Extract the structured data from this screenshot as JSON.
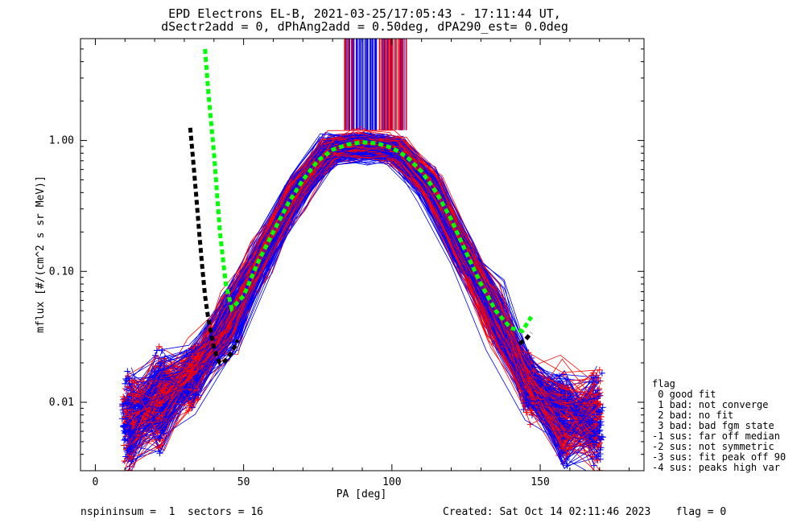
{
  "header": {
    "title_line1": "EPD Electrons EL-B, 2021-03-25/17:05:43 - 17:11:44 UT,",
    "title_line2": "dSectr2add = 0, dPhAng2add = 0.50deg, dPA290_est=   0.0deg"
  },
  "footer": {
    "left": "nspininsum =  1  sectors = 16",
    "right": "Created: Sat Oct 14 02:11:46 2023    flag = 0"
  },
  "legend": {
    "title": "flag",
    "items": [
      " 0 good fit",
      " 1 bad: not converge",
      " 2 bad: no fit",
      " 3 bad: bad fgm state",
      "-1 sus: far off median",
      "-2 sus: not symmetric",
      "-3 sus: fit peak off 90",
      "-4 sus: peaks high var"
    ]
  },
  "colors": {
    "series_a": "#ff0000",
    "series_b": "#0000ff",
    "fit_green": "#00ff00",
    "fit_black": "#000000",
    "axis": "#000000"
  },
  "chart_data": {
    "type": "line",
    "scale_y": "log",
    "xlabel": "PA [deg]",
    "ylabel": "mflux [#/(cm^2 s sr MeV)]",
    "xlim": [
      -5,
      185
    ],
    "ylim": [
      0.003,
      6.0
    ],
    "x_ticks": [
      0,
      50,
      100,
      150
    ],
    "x_tick_labels": [
      "0",
      "50",
      "100",
      "150"
    ],
    "y_ticks": [
      0.01,
      0.1,
      1.0
    ],
    "y_tick_labels": [
      "0.01",
      "0.10",
      "1.00"
    ],
    "pa_grid": [
      11,
      22,
      33,
      45,
      56,
      68,
      79,
      90,
      101,
      113,
      124,
      135,
      146,
      158,
      169
    ],
    "median_profile": [
      0.0075,
      0.01,
      0.016,
      0.04,
      0.13,
      0.4,
      0.86,
      0.93,
      0.86,
      0.45,
      0.14,
      0.045,
      0.014,
      0.008,
      0.0075
    ],
    "series": [
      {
        "color_key": "series_a",
        "curve_count": 130
      },
      {
        "color_key": "series_b",
        "curve_count": 170
      }
    ],
    "fit_curves": [
      {
        "color_key": "fit_green",
        "style": "dashed",
        "x": [
          37,
          38,
          40,
          42,
          44,
          46,
          50,
          55,
          60,
          65,
          70,
          75,
          80,
          85,
          90,
          95,
          100,
          105,
          110,
          115,
          120,
          125,
          130,
          135,
          140,
          144,
          147
        ],
        "y": [
          5.0,
          2.5,
          0.8,
          0.2,
          0.08,
          0.052,
          0.065,
          0.12,
          0.2,
          0.33,
          0.5,
          0.7,
          0.85,
          0.93,
          0.97,
          0.95,
          0.88,
          0.75,
          0.58,
          0.4,
          0.25,
          0.14,
          0.08,
          0.05,
          0.037,
          0.035,
          0.045
        ]
      },
      {
        "color_key": "fit_black",
        "style": "dashed",
        "x": [
          32,
          33,
          34,
          35,
          36,
          37,
          38,
          39,
          40,
          41,
          42,
          43,
          44,
          46,
          48
        ],
        "y": [
          1.25,
          0.7,
          0.38,
          0.2,
          0.11,
          0.065,
          0.045,
          0.034,
          0.026,
          0.022,
          0.02,
          0.02,
          0.021,
          0.024,
          0.03
        ]
      },
      {
        "color_key": "fit_black",
        "style": "dashed",
        "x": [
          143,
          145,
          147
        ],
        "y": [
          0.028,
          0.03,
          0.034
        ]
      }
    ],
    "spikes": {
      "x_range": [
        84,
        105
      ],
      "y_from": 1.2,
      "y_to": 6.0
    }
  }
}
